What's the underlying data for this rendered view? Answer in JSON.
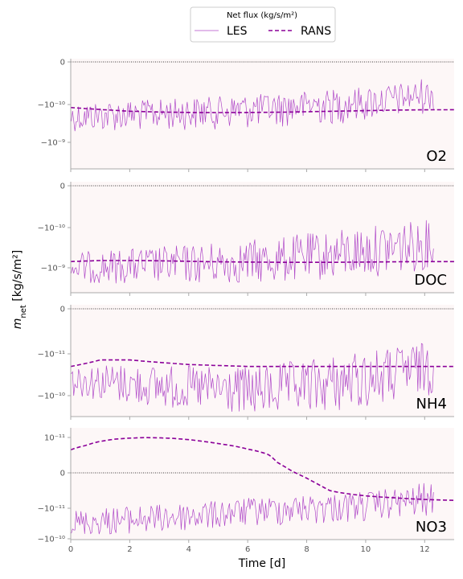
{
  "figure": {
    "legend_title": "Net flux (kg/s/m²)",
    "ylabel": "m_net [kg/s/m²]",
    "xlabel": "Time [d]",
    "x_ticks": [
      "0",
      "2",
      "4",
      "6",
      "8",
      "10",
      "12"
    ]
  },
  "colors": {
    "les": "#b04ac8",
    "rans": "#8b0099",
    "panel_bg": "#fdf7f7",
    "spine": "#aaaaaa"
  },
  "chart_data": [
    {
      "type": "line",
      "panel_label": "O2",
      "xlim": [
        0,
        13
      ],
      "yscale": "symlog",
      "y_ticks": [
        "0",
        "−10⁻¹⁰",
        "−10⁻⁹"
      ],
      "series": [
        {
          "name": "LES",
          "style": "solid",
          "start": -2.1e-10,
          "mid": -1.2e-10,
          "end": -3e-11,
          "noise": 0.55
        },
        {
          "name": "RANS",
          "style": "dashed",
          "x": [
            0,
            1,
            2,
            3,
            4,
            5,
            6,
            7,
            8,
            9,
            10,
            11,
            12,
            13
          ],
          "y": [
            -1.2e-10,
            -1.35e-10,
            -1.5e-10,
            -1.58e-10,
            -1.62e-10,
            -1.63e-10,
            -1.62e-10,
            -1.6e-10,
            -1.55e-10,
            -1.5e-10,
            -1.45e-10,
            -1.4e-10,
            -1.38e-10,
            -1.37e-10
          ]
        }
      ]
    },
    {
      "type": "line",
      "panel_label": "DOC",
      "xlim": [
        0,
        13
      ],
      "yscale": "symlog",
      "y_ticks": [
        "0",
        "−10⁻¹⁰",
        "−10⁻⁹"
      ],
      "series": [
        {
          "name": "LES",
          "style": "solid",
          "start": -1e-09,
          "mid": -7e-10,
          "end": -2e-10,
          "noise": 0.55
        },
        {
          "name": "RANS",
          "style": "dashed",
          "x": [
            0,
            1,
            2,
            3,
            4,
            5,
            6,
            7,
            8,
            9,
            10,
            11,
            12,
            13
          ],
          "y": [
            -7e-10,
            -6.6e-10,
            -6.6e-10,
            -6.7e-10,
            -6.9e-10,
            -7.1e-10,
            -7.2e-10,
            -7.3e-10,
            -7.3e-10,
            -7.3e-10,
            -7.2e-10,
            -7.1e-10,
            -7e-10,
            -7e-10
          ]
        }
      ]
    },
    {
      "type": "line",
      "panel_label": "NH4",
      "xlim": [
        0,
        13
      ],
      "yscale": "symlog",
      "y_ticks": [
        "0",
        "−10⁻¹¹",
        "−10⁻¹⁰"
      ],
      "series": [
        {
          "name": "LES",
          "style": "solid",
          "start": -4e-11,
          "mid": -8e-11,
          "end": -1.5e-11,
          "noise": 0.6
        },
        {
          "name": "RANS",
          "style": "dashed",
          "x": [
            0,
            1,
            2,
            3,
            4,
            5,
            6,
            7,
            8,
            9,
            10,
            11,
            12,
            13
          ],
          "y": [
            -2e-11,
            -1.4e-11,
            -1.4e-11,
            -1.6e-11,
            -1.8e-11,
            -1.9e-11,
            -2e-11,
            -2e-11,
            -2e-11,
            -2e-11,
            -2e-11,
            -2e-11,
            -2e-11,
            -2e-11
          ]
        }
      ]
    },
    {
      "type": "line",
      "panel_label": "NO3",
      "xlim": [
        0,
        13
      ],
      "yscale": "symlog",
      "y_ticks": [
        "10⁻¹¹",
        "0",
        "−10⁻¹¹",
        "−10⁻¹⁰"
      ],
      "series": [
        {
          "name": "LES",
          "style": "solid",
          "start": -3e-11,
          "mid": -1e-11,
          "end": -3e-12,
          "noise": 0.6
        },
        {
          "name": "RANS",
          "style": "dashed",
          "x": [
            0,
            0.5,
            1,
            1.5,
            2,
            2.5,
            3,
            3.5,
            4,
            5,
            6,
            7,
            7.5,
            8,
            9,
            10,
            11,
            12,
            13
          ],
          "y": [
            2e-12,
            3.5e-12,
            6e-12,
            8e-12,
            9.2e-12,
            9.8e-12,
            9.6e-12,
            8.8e-12,
            7.5e-12,
            4.5e-12,
            2.2e-12,
            6e-13,
            1e-13,
            -3e-13,
            -1.2e-12,
            -2e-12,
            -2.6e-12,
            -3.2e-12,
            -3.6e-12
          ]
        }
      ]
    }
  ]
}
